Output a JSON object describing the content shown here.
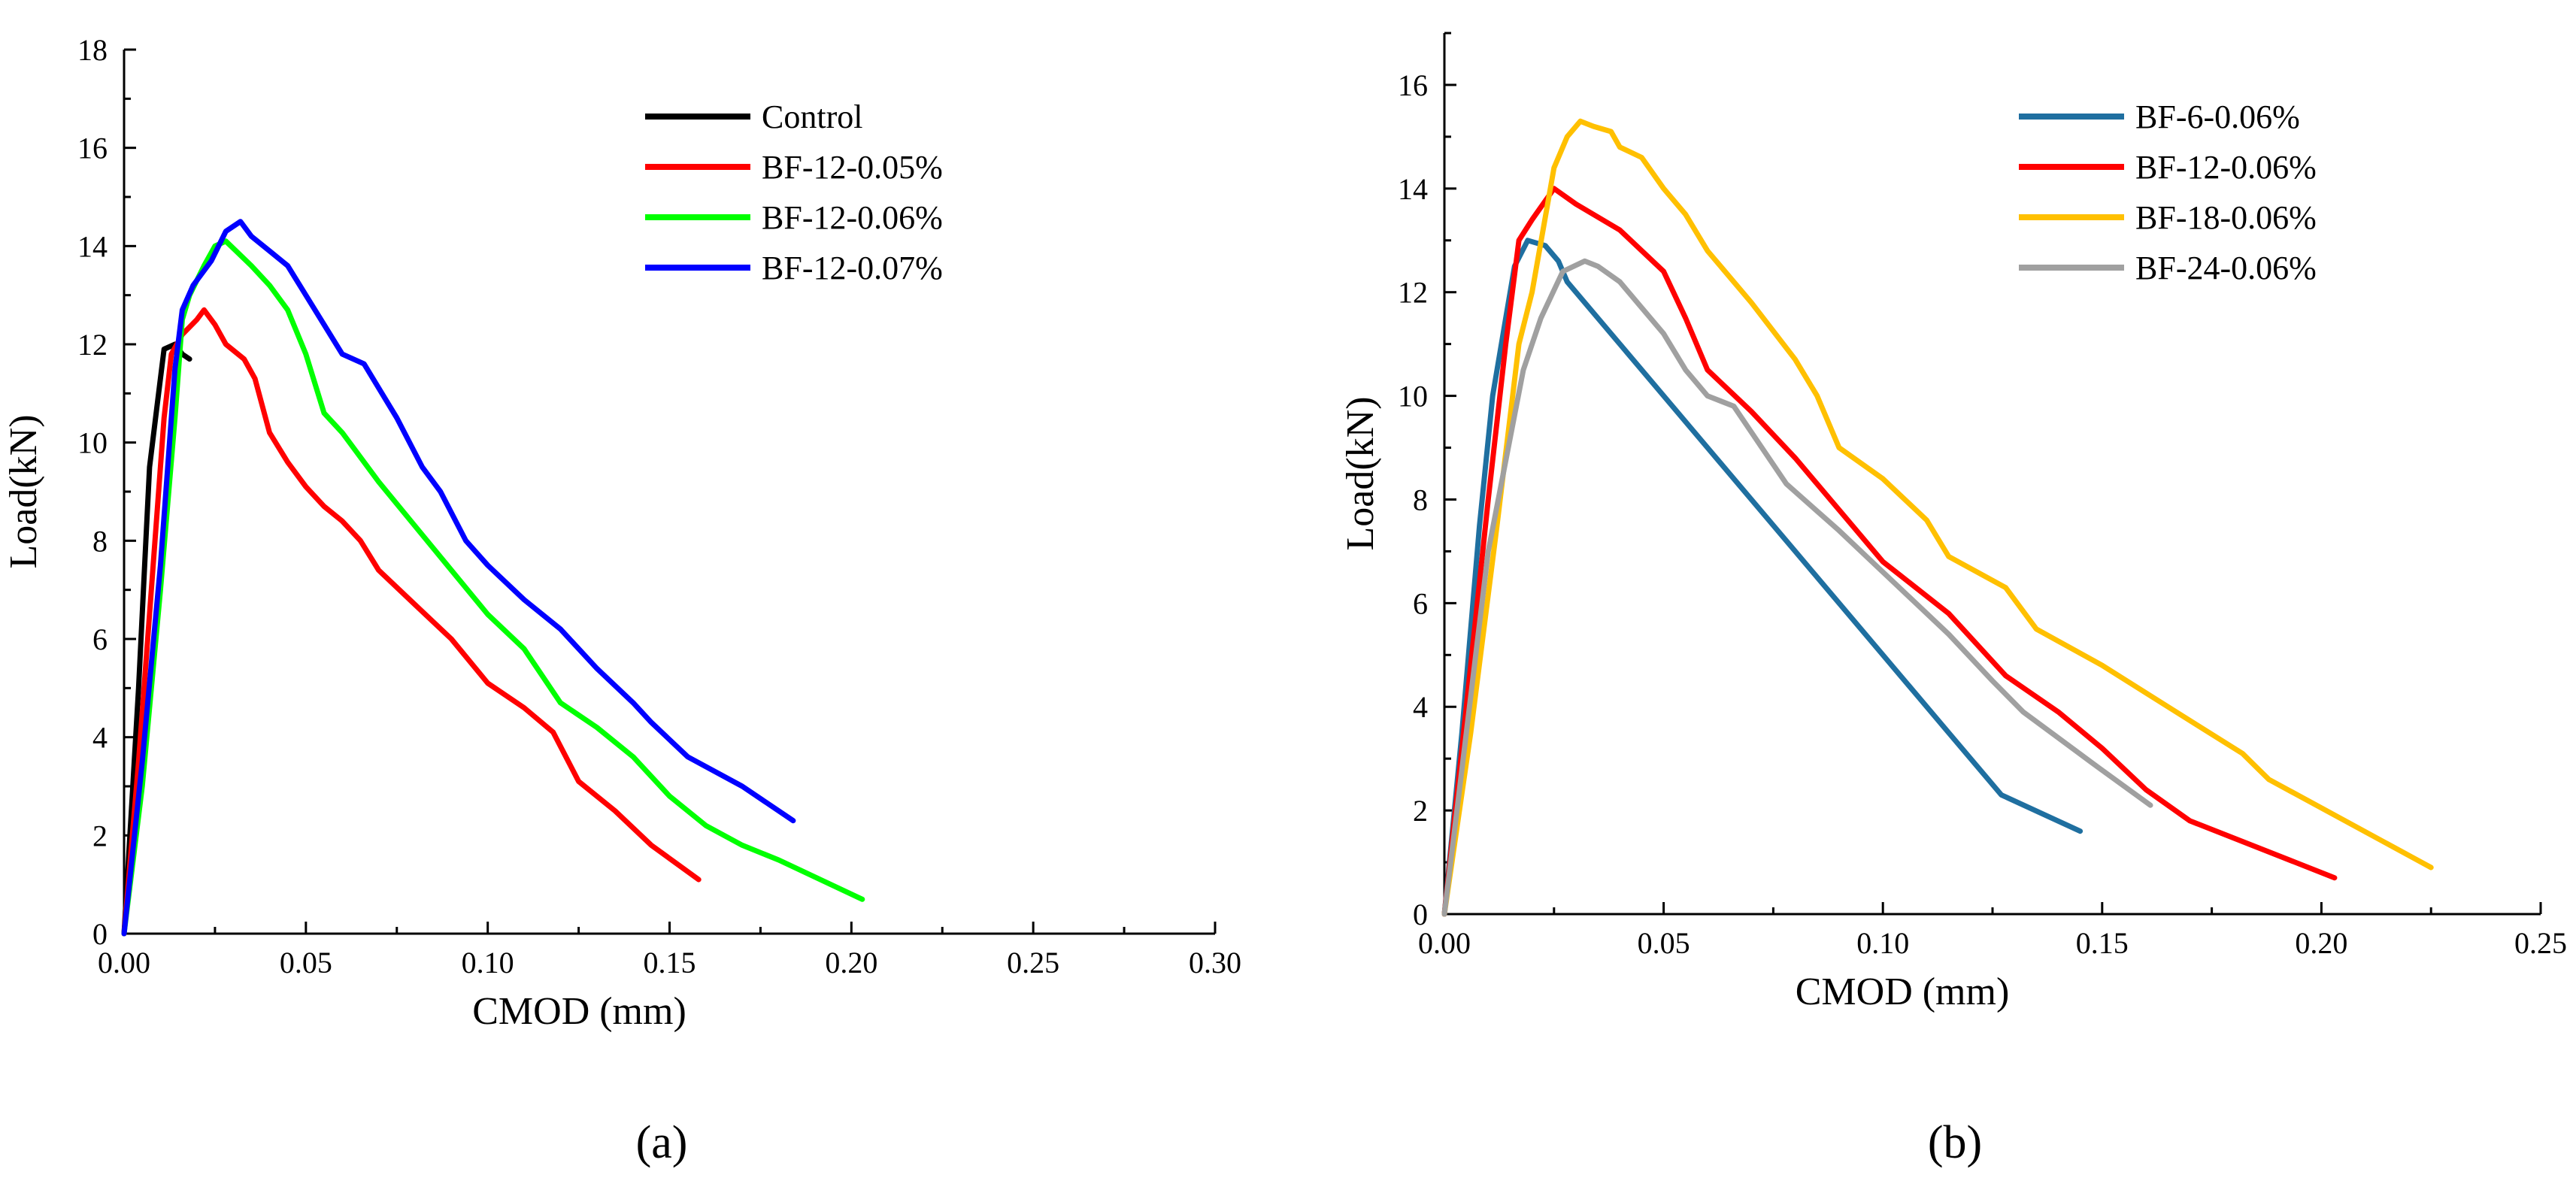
{
  "chart_data": [
    {
      "type": "line",
      "panel_label": "(a)",
      "xlabel": "CMOD (mm)",
      "ylabel": "Load(kN)",
      "xlim": [
        0,
        0.3
      ],
      "ylim": [
        0,
        18
      ],
      "xticks": [
        "0.00",
        "0.05",
        "0.10",
        "0.15",
        "0.20",
        "0.25",
        "0.30"
      ],
      "yticks": [
        "0",
        "2",
        "4",
        "6",
        "8",
        "10",
        "12",
        "14",
        "16",
        "18"
      ],
      "legend_position": "top-right",
      "series": [
        {
          "name": "Control",
          "color": "#000000",
          "points": [
            [
              0.0,
              0.0
            ],
            [
              0.002,
              2.5
            ],
            [
              0.004,
              5.0
            ],
            [
              0.006,
              8.0
            ],
            [
              0.007,
              9.5
            ],
            [
              0.009,
              10.7
            ],
            [
              0.011,
              11.9
            ],
            [
              0.014,
              12.0
            ],
            [
              0.016,
              11.8
            ],
            [
              0.018,
              11.7
            ]
          ]
        },
        {
          "name": "BF-12-0.05%",
          "color": "#ff0000",
          "points": [
            [
              0.0,
              0.0
            ],
            [
              0.004,
              3.5
            ],
            [
              0.008,
              7.5
            ],
            [
              0.011,
              10.5
            ],
            [
              0.013,
              11.8
            ],
            [
              0.016,
              12.2
            ],
            [
              0.02,
              12.5
            ],
            [
              0.022,
              12.7
            ],
            [
              0.025,
              12.4
            ],
            [
              0.028,
              12.0
            ],
            [
              0.033,
              11.7
            ],
            [
              0.036,
              11.3
            ],
            [
              0.04,
              10.2
            ],
            [
              0.045,
              9.6
            ],
            [
              0.05,
              9.1
            ],
            [
              0.055,
              8.7
            ],
            [
              0.06,
              8.4
            ],
            [
              0.065,
              8.0
            ],
            [
              0.07,
              7.4
            ],
            [
              0.08,
              6.7
            ],
            [
              0.09,
              6.0
            ],
            [
              0.1,
              5.1
            ],
            [
              0.11,
              4.6
            ],
            [
              0.118,
              4.1
            ],
            [
              0.125,
              3.1
            ],
            [
              0.135,
              2.5
            ],
            [
              0.145,
              1.8
            ],
            [
              0.158,
              1.1
            ]
          ]
        },
        {
          "name": "BF-12-0.06%",
          "color": "#00ff00",
          "points": [
            [
              0.0,
              0.0
            ],
            [
              0.005,
              3.0
            ],
            [
              0.01,
              7.0
            ],
            [
              0.014,
              10.5
            ],
            [
              0.016,
              12.5
            ],
            [
              0.018,
              13.0
            ],
            [
              0.022,
              13.6
            ],
            [
              0.025,
              14.0
            ],
            [
              0.028,
              14.1
            ],
            [
              0.035,
              13.6
            ],
            [
              0.04,
              13.2
            ],
            [
              0.045,
              12.7
            ],
            [
              0.05,
              11.8
            ],
            [
              0.055,
              10.6
            ],
            [
              0.06,
              10.2
            ],
            [
              0.07,
              9.2
            ],
            [
              0.08,
              8.3
            ],
            [
              0.09,
              7.4
            ],
            [
              0.1,
              6.5
            ],
            [
              0.11,
              5.8
            ],
            [
              0.12,
              4.7
            ],
            [
              0.13,
              4.2
            ],
            [
              0.14,
              3.6
            ],
            [
              0.15,
              2.8
            ],
            [
              0.16,
              2.2
            ],
            [
              0.17,
              1.8
            ],
            [
              0.18,
              1.5
            ],
            [
              0.203,
              0.7
            ]
          ]
        },
        {
          "name": "BF-12-0.07%",
          "color": "#0000ff",
          "points": [
            [
              0.0,
              0.0
            ],
            [
              0.005,
              3.5
            ],
            [
              0.01,
              7.5
            ],
            [
              0.014,
              11.5
            ],
            [
              0.016,
              12.7
            ],
            [
              0.019,
              13.2
            ],
            [
              0.024,
              13.7
            ],
            [
              0.028,
              14.3
            ],
            [
              0.032,
              14.5
            ],
            [
              0.035,
              14.2
            ],
            [
              0.04,
              13.9
            ],
            [
              0.045,
              13.6
            ],
            [
              0.05,
              13.0
            ],
            [
              0.055,
              12.4
            ],
            [
              0.06,
              11.8
            ],
            [
              0.066,
              11.6
            ],
            [
              0.075,
              10.5
            ],
            [
              0.082,
              9.5
            ],
            [
              0.087,
              9.0
            ],
            [
              0.094,
              8.0
            ],
            [
              0.1,
              7.5
            ],
            [
              0.11,
              6.8
            ],
            [
              0.12,
              6.2
            ],
            [
              0.13,
              5.4
            ],
            [
              0.14,
              4.7
            ],
            [
              0.145,
              4.3
            ],
            [
              0.155,
              3.6
            ],
            [
              0.17,
              3.0
            ],
            [
              0.184,
              2.3
            ]
          ]
        }
      ]
    },
    {
      "type": "line",
      "panel_label": "(b)",
      "xlabel": "CMOD (mm)",
      "ylabel": "Load(kN)",
      "xlim": [
        0,
        0.25
      ],
      "ylim": [
        0,
        17
      ],
      "xticks": [
        "0.00",
        "0.05",
        "0.10",
        "0.15",
        "0.20",
        "0.25"
      ],
      "yticks": [
        "0",
        "2",
        "4",
        "6",
        "8",
        "10",
        "12",
        "14",
        "16"
      ],
      "legend_position": "top-right",
      "series": [
        {
          "name": "BF-6-0.06%",
          "color": "#1f6fa0",
          "points": [
            [
              0.0,
              0.0
            ],
            [
              0.004,
              3.5
            ],
            [
              0.008,
              7.5
            ],
            [
              0.011,
              10.0
            ],
            [
              0.014,
              11.5
            ],
            [
              0.016,
              12.5
            ],
            [
              0.019,
              13.0
            ],
            [
              0.023,
              12.9
            ],
            [
              0.026,
              12.6
            ],
            [
              0.028,
              12.2
            ],
            [
              0.04,
              11.0
            ],
            [
              0.06,
              9.0
            ],
            [
              0.08,
              7.0
            ],
            [
              0.1,
              5.0
            ],
            [
              0.115,
              3.5
            ],
            [
              0.127,
              2.3
            ],
            [
              0.145,
              1.6
            ]
          ]
        },
        {
          "name": "BF-12-0.06%",
          "color": "#ff0000",
          "points": [
            [
              0.0,
              0.0
            ],
            [
              0.005,
              4.0
            ],
            [
              0.01,
              8.0
            ],
            [
              0.014,
              11.0
            ],
            [
              0.017,
              13.0
            ],
            [
              0.02,
              13.4
            ],
            [
              0.025,
              14.0
            ],
            [
              0.03,
              13.7
            ],
            [
              0.04,
              13.2
            ],
            [
              0.05,
              12.4
            ],
            [
              0.055,
              11.5
            ],
            [
              0.06,
              10.5
            ],
            [
              0.07,
              9.7
            ],
            [
              0.08,
              8.8
            ],
            [
              0.09,
              7.8
            ],
            [
              0.1,
              6.8
            ],
            [
              0.115,
              5.8
            ],
            [
              0.128,
              4.6
            ],
            [
              0.14,
              3.9
            ],
            [
              0.15,
              3.2
            ],
            [
              0.16,
              2.4
            ],
            [
              0.17,
              1.8
            ],
            [
              0.203,
              0.7
            ]
          ]
        },
        {
          "name": "BF-18-0.06%",
          "color": "#ffc000",
          "points": [
            [
              0.0,
              0.0
            ],
            [
              0.006,
              3.5
            ],
            [
              0.012,
              7.5
            ],
            [
              0.017,
              11.0
            ],
            [
              0.02,
              12.0
            ],
            [
              0.025,
              14.4
            ],
            [
              0.028,
              15.0
            ],
            [
              0.031,
              15.3
            ],
            [
              0.034,
              15.2
            ],
            [
              0.038,
              15.1
            ],
            [
              0.04,
              14.8
            ],
            [
              0.045,
              14.6
            ],
            [
              0.05,
              14.0
            ],
            [
              0.055,
              13.5
            ],
            [
              0.06,
              12.8
            ],
            [
              0.07,
              11.8
            ],
            [
              0.08,
              10.7
            ],
            [
              0.085,
              10.0
            ],
            [
              0.09,
              9.0
            ],
            [
              0.1,
              8.4
            ],
            [
              0.11,
              7.6
            ],
            [
              0.115,
              6.9
            ],
            [
              0.128,
              6.3
            ],
            [
              0.135,
              5.5
            ],
            [
              0.15,
              4.8
            ],
            [
              0.165,
              4.0
            ],
            [
              0.182,
              3.1
            ],
            [
              0.188,
              2.6
            ],
            [
              0.225,
              0.9
            ]
          ]
        },
        {
          "name": "BF-24-0.06%",
          "color": "#a0a0a0",
          "points": [
            [
              0.0,
              0.0
            ],
            [
              0.005,
              3.5
            ],
            [
              0.01,
              7.0
            ],
            [
              0.018,
              10.5
            ],
            [
              0.022,
              11.5
            ],
            [
              0.027,
              12.4
            ],
            [
              0.032,
              12.6
            ],
            [
              0.035,
              12.5
            ],
            [
              0.04,
              12.2
            ],
            [
              0.045,
              11.7
            ],
            [
              0.05,
              11.2
            ],
            [
              0.055,
              10.5
            ],
            [
              0.06,
              10.0
            ],
            [
              0.066,
              9.8
            ],
            [
              0.07,
              9.3
            ],
            [
              0.078,
              8.3
            ],
            [
              0.09,
              7.4
            ],
            [
              0.1,
              6.6
            ],
            [
              0.115,
              5.4
            ],
            [
              0.125,
              4.5
            ],
            [
              0.132,
              3.9
            ],
            [
              0.14,
              3.4
            ],
            [
              0.148,
              2.9
            ],
            [
              0.161,
              2.1
            ]
          ]
        }
      ]
    }
  ]
}
